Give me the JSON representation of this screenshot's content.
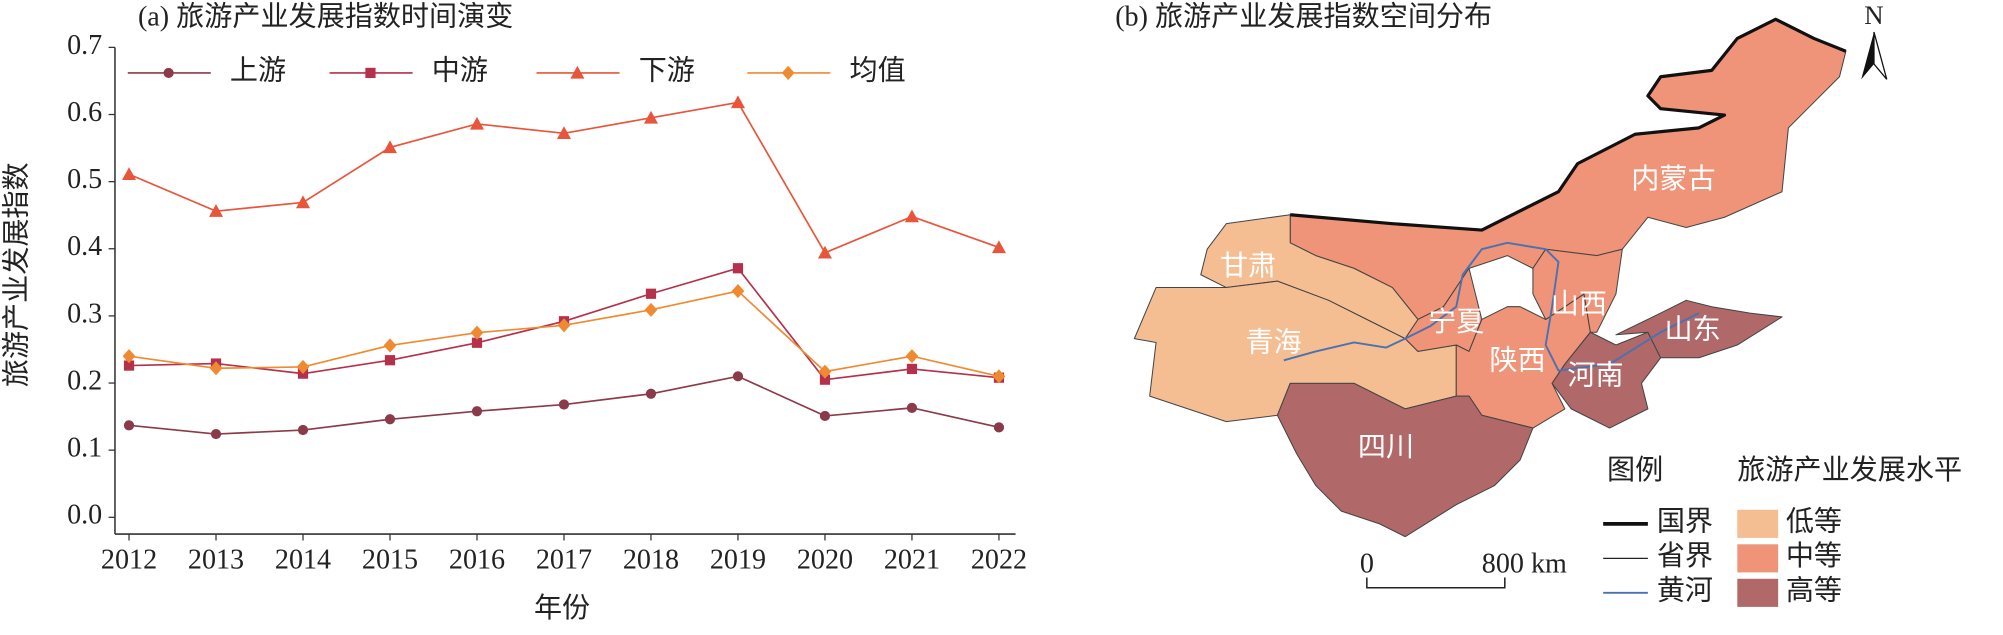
{
  "chart_data": [
    {
      "type": "line",
      "title": "(a) 旅游产业发展指数时间演变",
      "x_label": "年份",
      "y_label": "旅游产业发展指数",
      "categories": [
        "2012",
        "2013",
        "2014",
        "2015",
        "2016",
        "2017",
        "2018",
        "2019",
        "2020",
        "2021",
        "2022"
      ],
      "series": [
        {
          "name": "上游",
          "color": "#8b3a4a",
          "marker": "circle",
          "values": [
            0.137,
            0.124,
            0.13,
            0.146,
            0.158,
            0.168,
            0.184,
            0.21,
            0.151,
            0.163,
            0.134
          ]
        },
        {
          "name": "中游",
          "color": "#b5304a",
          "marker": "square",
          "values": [
            0.226,
            0.229,
            0.214,
            0.234,
            0.26,
            0.292,
            0.333,
            0.371,
            0.205,
            0.221,
            0.208
          ]
        },
        {
          "name": "下游",
          "color": "#e8553a",
          "marker": "triangle",
          "values": [
            0.511,
            0.456,
            0.469,
            0.551,
            0.586,
            0.572,
            0.595,
            0.618,
            0.394,
            0.448,
            0.402
          ]
        },
        {
          "name": "均值",
          "color": "#f08a30",
          "marker": "diamond",
          "values": [
            0.24,
            0.222,
            0.224,
            0.256,
            0.275,
            0.286,
            0.309,
            0.337,
            0.217,
            0.24,
            0.21
          ]
        }
      ],
      "ylim": [
        -0.025,
        0.7
      ],
      "yticks": [
        {
          "value": 0,
          "label": "0.0"
        },
        0.1,
        0.2,
        0.3,
        0.4,
        0.5,
        0.6,
        0.7
      ],
      "grid": false,
      "legend": "top"
    }
  ],
  "map": {
    "title": "(b) 旅游产业发展指数空间分布",
    "north": "N",
    "regions": [
      "甘肃",
      "青海",
      "宁夏",
      "山西",
      "陕西",
      "河南",
      "山东",
      "内蒙古",
      "四川"
    ],
    "legend_title": "图例",
    "level_title": "旅游产业发展水平",
    "line_legend": [
      "国界",
      "省界",
      "黄河"
    ],
    "level_legend": [
      "低等",
      "中等",
      "高等"
    ],
    "scale": [
      "0",
      "800 km"
    ]
  }
}
